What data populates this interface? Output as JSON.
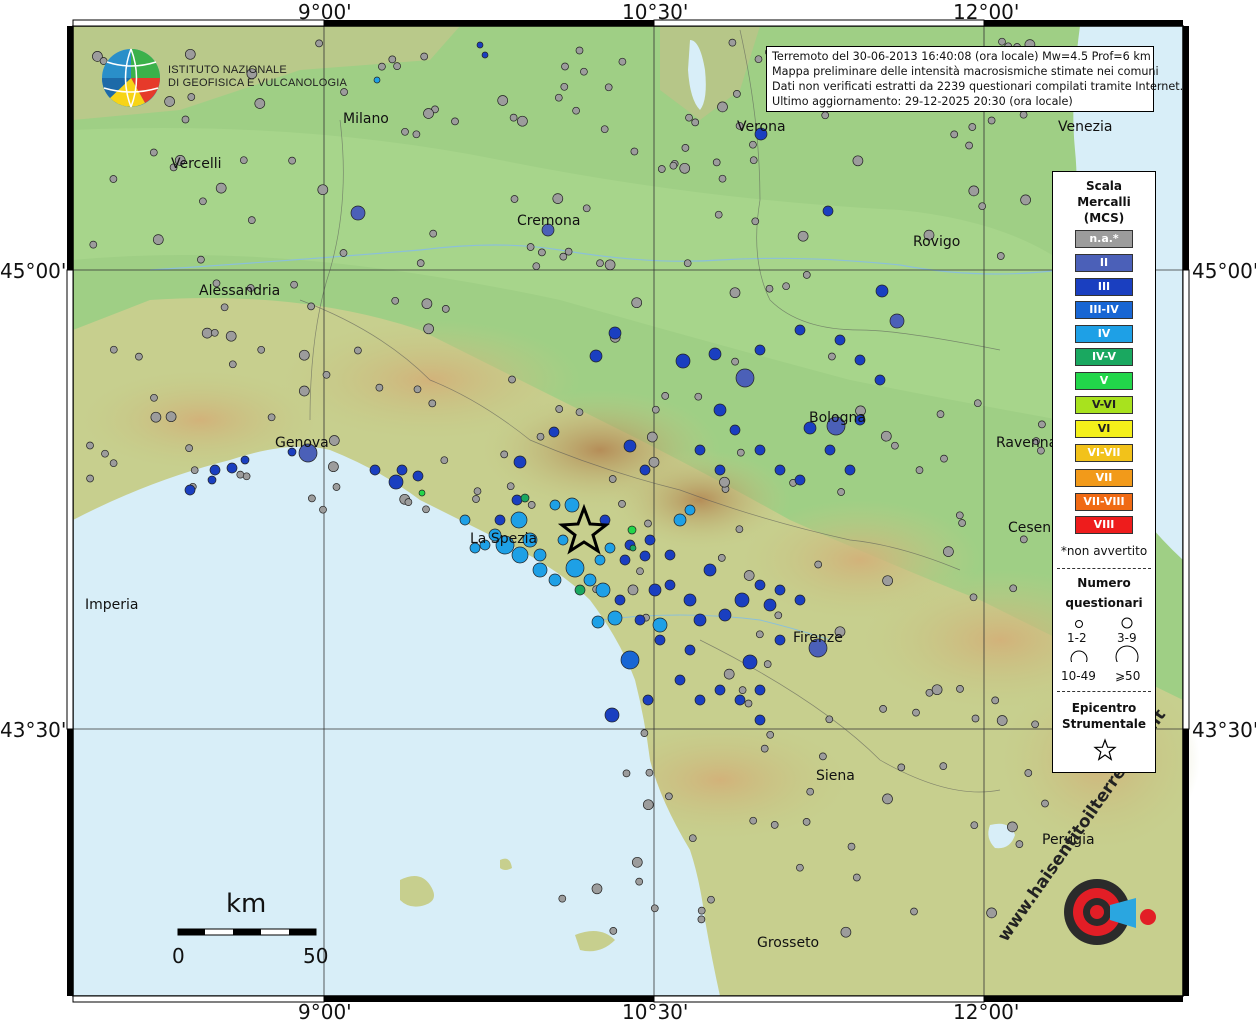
{
  "title_lines": [
    "Terremoto del 30-06-2013 16:40:08 (ora locale) Mw=4.5 Prof=6 km",
    "Mappa preliminare delle intensità macrosismiche stimate nei comuni",
    "Dati non verificati estratti da 2239 questionari compilati tramite Internet.",
    "Ultimo aggiornamento: 29-12-2025 20:30 (ora locale)"
  ],
  "logo": {
    "line1": "ISTITUTO NAZIONALE",
    "line2": "DI GEOFISICA E VULCANOLOGIA"
  },
  "coords": {
    "top": [
      "9°00'",
      "10°30'",
      "12°00'"
    ],
    "bottom": [
      "9°00'",
      "10°30'",
      "12°00'"
    ],
    "left": [
      "45°00'",
      "43°30'"
    ],
    "right": [
      "45°00'",
      "43°30'"
    ]
  },
  "cities": [
    "Milano",
    "Verona",
    "Venezia",
    "Vercelli",
    "Cremona",
    "Rovigo",
    "Alessandria",
    "Bologna",
    "Genova",
    "Ravenna",
    "Cesena",
    "La Spezia",
    "Imperia",
    "Firenze",
    "Siena",
    "Perugia",
    "Grosseto"
  ],
  "legend": {
    "title": [
      "Scala",
      "Mercalli",
      "(MCS)"
    ],
    "classes": [
      {
        "label": "n.a.*",
        "color": "#9c9c9c"
      },
      {
        "label": "II",
        "color": "#4b60b8"
      },
      {
        "label": "III",
        "color": "#1a3fc0"
      },
      {
        "label": "III-IV",
        "color": "#1866d4"
      },
      {
        "label": "IV",
        "color": "#1ea0e6"
      },
      {
        "label": "IV-V",
        "color": "#1aa860"
      },
      {
        "label": "V",
        "color": "#22d64a"
      },
      {
        "label": "V-VI",
        "color": "#a8e21e"
      },
      {
        "label": "VI",
        "color": "#f4f01a"
      },
      {
        "label": "VI-VII",
        "color": "#f2c21a"
      },
      {
        "label": "VII",
        "color": "#f29a1a"
      },
      {
        "label": "VII-VIII",
        "color": "#f06a14"
      },
      {
        "label": "VIII",
        "color": "#ee1c1c"
      }
    ],
    "note": "*non avvertito",
    "count_title": [
      "Numero",
      "questionari"
    ],
    "counts": [
      "1-2",
      "3-9",
      "10-49",
      "⩾50"
    ],
    "epicenter_title": [
      "Epicentro",
      "Strumentale"
    ]
  },
  "scalebar": {
    "unit": "km",
    "start": "0",
    "end": "50"
  },
  "brand": "www.haisentitoilterremoto.it"
}
